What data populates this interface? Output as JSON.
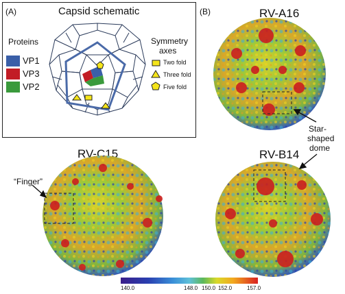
{
  "panel_a": {
    "letter": "(A)",
    "title": "Capsid schematic",
    "proteins_label": "Proteins",
    "proteins": [
      {
        "name": "VP1",
        "color": "#3a5fa8"
      },
      {
        "name": "VP3",
        "color": "#c21d25"
      },
      {
        "name": "VP2",
        "color": "#3a9a3c"
      }
    ],
    "symmetry": {
      "title_line1": "Symmetry",
      "title_line2": "axes",
      "items": [
        {
          "label": "Two fold",
          "shape": "rectangle"
        },
        {
          "label": "Three fold",
          "shape": "triangle"
        },
        {
          "label": "Five fold",
          "shape": "pentagon"
        }
      ],
      "marker_color": "#f5e51a"
    },
    "frame_color": "#4a6aa8"
  },
  "panel_b": {
    "letter": "(B)",
    "virus": "RV-A16",
    "annotation": [
      "Star-",
      "shaped",
      "dome"
    ]
  },
  "panel_c": {
    "virus": "RV-C15",
    "annotation": "“Finger”"
  },
  "panel_d": {
    "virus": "RV-B14"
  },
  "colorbar": {
    "ticks": [
      "140.0",
      "148.0",
      "150.0",
      "152.0",
      "157.0"
    ],
    "colors": [
      "#3a1e8a",
      "#2a3fb0",
      "#3a8fd8",
      "#5fc0d8",
      "#5cb85a",
      "#d9d92a",
      "#f2a81f",
      "#d92020"
    ]
  }
}
